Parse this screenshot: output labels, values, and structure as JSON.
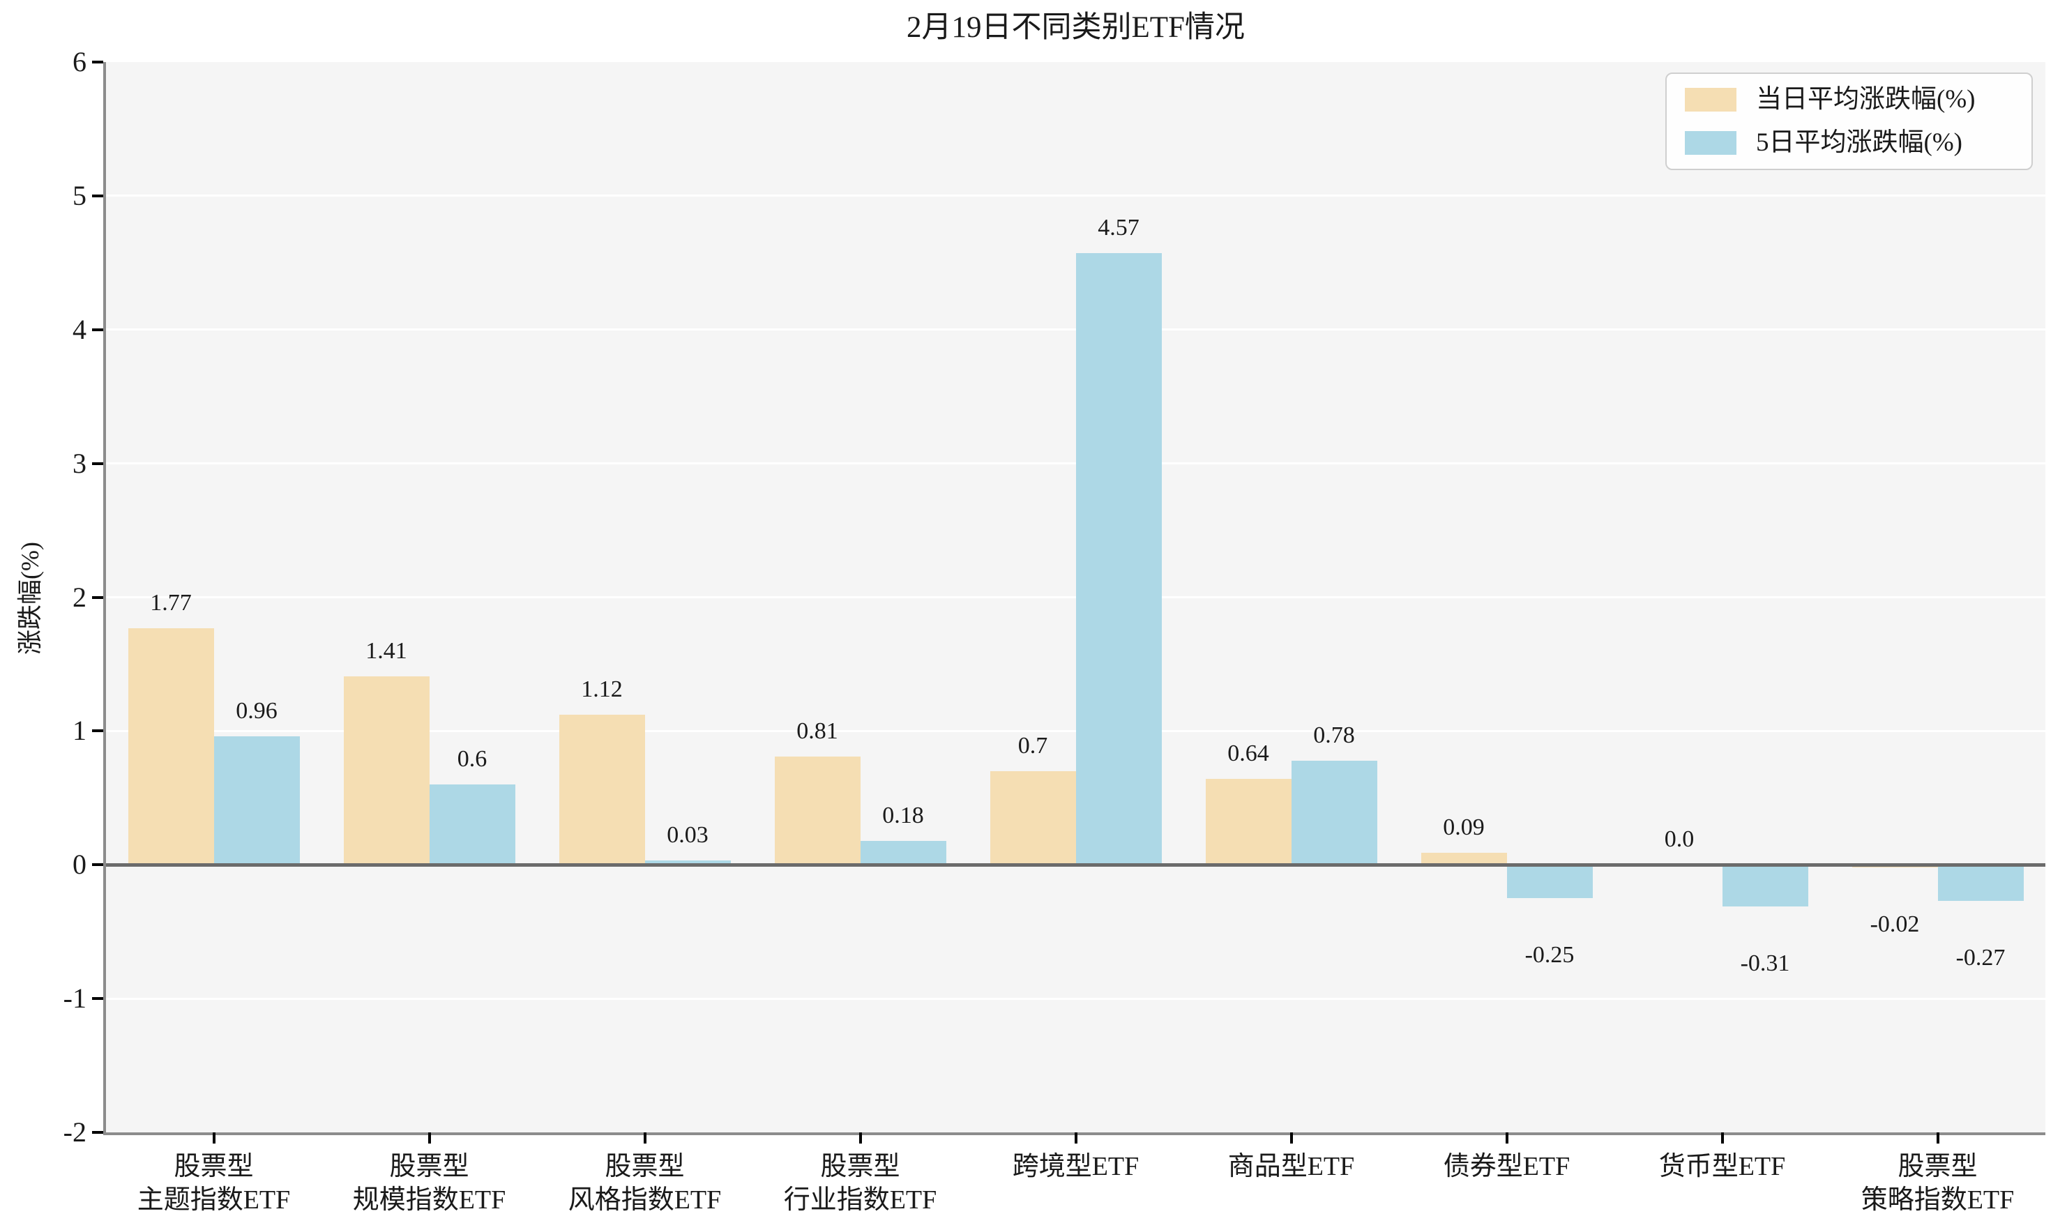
{
  "title": "2月19日不同类别ETF情况",
  "colors": {
    "plot_background": "#f5f5f5",
    "grid": "#ffffff",
    "spine": "#8c8c8c",
    "zero_line": "#6b6b6b",
    "tick": "#000000",
    "text": "#1a1a1a",
    "series_day": "#f5deb3",
    "series_5day": "#add8e6"
  },
  "chart_data": {
    "type": "bar",
    "title": "2月19日不同类别ETF情况",
    "xlabel": "",
    "ylabel": "涨跌幅(%)",
    "ylim": [
      -2,
      6
    ],
    "yticks": [
      -2,
      -1,
      0,
      1,
      2,
      3,
      4,
      5,
      6
    ],
    "grid": true,
    "legend_position": "upper right",
    "categories": [
      [
        "股票型",
        "主题指数ETF"
      ],
      [
        "股票型",
        "规模指数ETF"
      ],
      [
        "股票型",
        "风格指数ETF"
      ],
      [
        "股票型",
        "行业指数ETF"
      ],
      [
        "跨境型ETF"
      ],
      [
        "商品型ETF"
      ],
      [
        "债券型ETF"
      ],
      [
        "货币型ETF"
      ],
      [
        "股票型",
        "策略指数ETF"
      ]
    ],
    "series": [
      {
        "name": "当日平均涨跌幅(%)",
        "color": "#f5deb3",
        "values": [
          1.77,
          1.41,
          1.12,
          0.81,
          0.7,
          0.64,
          0.09,
          0.0,
          -0.02
        ],
        "labels": [
          "1.77",
          "1.41",
          "1.12",
          "0.81",
          "0.7",
          "0.64",
          "0.09",
          "0.0",
          "-0.02"
        ]
      },
      {
        "name": "5日平均涨跌幅(%)",
        "color": "#add8e6",
        "values": [
          0.96,
          0.6,
          0.03,
          0.18,
          4.57,
          0.78,
          -0.25,
          -0.31,
          -0.27
        ],
        "labels": [
          "0.96",
          "0.6",
          "0.03",
          "0.18",
          "4.57",
          "0.78",
          "-0.25",
          "-0.31",
          "-0.27"
        ]
      }
    ]
  }
}
